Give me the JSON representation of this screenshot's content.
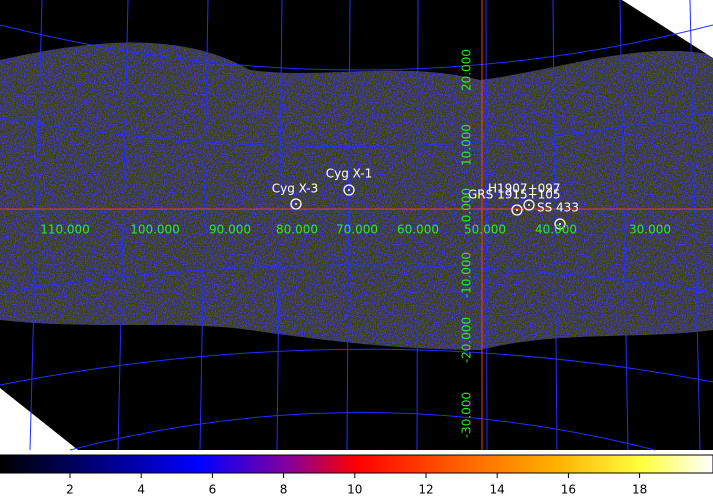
{
  "sources": [
    {
      "label": "Cyg X-3"
    },
    {
      "label": "Cyg X-1"
    },
    {
      "label": "GRS 1915+105"
    },
    {
      "label": "H1907+097"
    },
    {
      "label": "SS 433"
    }
  ],
  "longitude_labels": [
    "110.000",
    "100.000",
    "90.000",
    "80.000",
    "70.000",
    "60.000",
    "50.000",
    "40.000",
    "30.000"
  ],
  "latitude_labels": [
    "20.000",
    "10.000",
    "0.000",
    "-10.000",
    "-20.000",
    "-30.000"
  ],
  "colorbar": {
    "ticks": [
      2,
      4,
      6,
      8,
      10,
      12,
      14,
      16,
      18
    ]
  }
}
